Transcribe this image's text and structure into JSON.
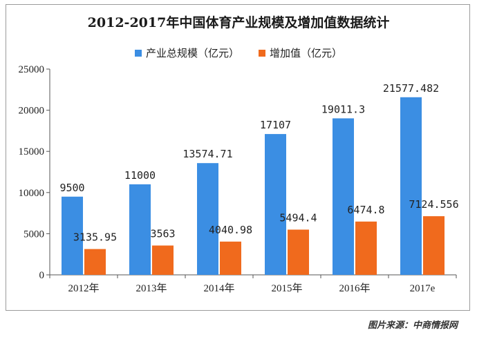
{
  "chart_data": {
    "type": "bar",
    "title": "2012-2017年中国体育产业规模及增加值数据统计",
    "categories": [
      "2012年",
      "2013年",
      "2014年",
      "2015年",
      "2016年",
      "2017e"
    ],
    "series": [
      {
        "name": "产业总规模（亿元）",
        "color": "#3b8ee3",
        "values": [
          9500,
          11000,
          13574.71,
          17107,
          19011.3,
          21577.482
        ],
        "labels": [
          "9500",
          "11000",
          "13574.71",
          "17107",
          "19011.3",
          "21577.482"
        ]
      },
      {
        "name": "增加值（亿元）",
        "color": "#f06a1d",
        "values": [
          3135.95,
          3563,
          4040.98,
          5494.4,
          6474.8,
          7124.556
        ],
        "labels": [
          "3135.95",
          "3563",
          "4040.98",
          "5494.4",
          "6474.8",
          "7124.556"
        ]
      }
    ],
    "ylim": [
      0,
      25000
    ],
    "yticks": [
      "0",
      "5000",
      "10000",
      "15000",
      "20000",
      "25000"
    ],
    "legend_position": "top-center",
    "grid": false
  },
  "source": "图片来源：中商情报网"
}
